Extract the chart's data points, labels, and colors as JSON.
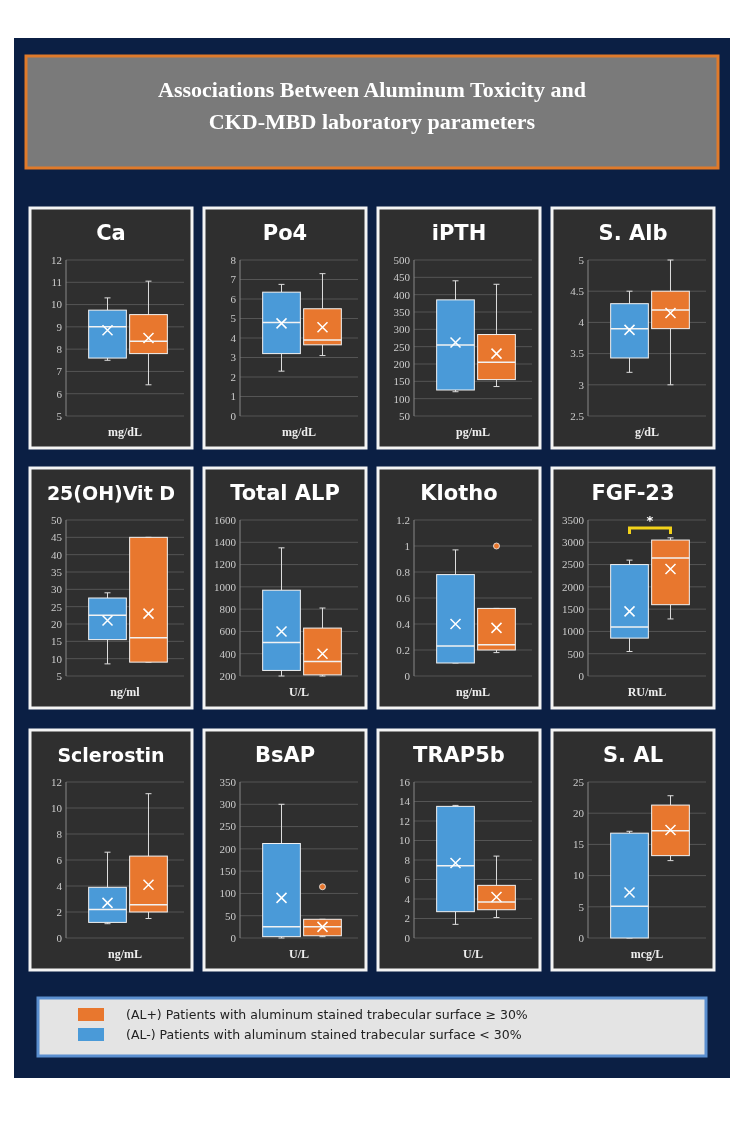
{
  "chart_data": [
    {
      "type": "other",
      "title": "Associations Between Aluminum Toxicity and CKD-MBD laboratory parameters"
    },
    {
      "type": "box",
      "title": "Ca",
      "xlabel": "mg/dL",
      "categories": [
        null
      ],
      "ylim": [
        5,
        12
      ],
      "yticks": [
        5,
        6,
        7,
        8,
        9,
        10,
        11,
        12
      ],
      "grid": "y",
      "series": [
        {
          "color": "#4a9ad8",
          "boxes": [
            {
              "low": 7.5,
              "q1": 7.6,
              "median": 9,
              "q3": 9.75,
              "high": 10.3,
              "mean": 8.85
            }
          ]
        },
        {
          "color": "#e8772e",
          "boxes": [
            {
              "low": 6.4,
              "q1": 7.8,
              "median": 8.35,
              "q3": 9.55,
              "high": 11.05,
              "mean": 8.5
            }
          ]
        }
      ]
    },
    {
      "type": "box",
      "title": "Po4",
      "xlabel": "mg/dL",
      "categories": [
        null
      ],
      "ylim": [
        0,
        8
      ],
      "yticks": [
        0,
        1,
        2,
        3,
        4,
        5,
        6,
        7,
        8
      ],
      "grid": "y",
      "series": [
        {
          "color": "#4a9ad8",
          "boxes": [
            {
              "low": 2.3,
              "q1": 3.2,
              "median": 4.8,
              "q3": 6.35,
              "high": 6.75,
              "mean": 4.75
            }
          ]
        },
        {
          "color": "#e8772e",
          "boxes": [
            {
              "low": 3.1,
              "q1": 3.65,
              "median": 3.9,
              "q3": 5.5,
              "high": 7.3,
              "mean": 4.55
            }
          ]
        }
      ]
    },
    {
      "type": "box",
      "title": "iPTH",
      "xlabel": "pg/mL",
      "categories": [
        null
      ],
      "ylim": [
        50,
        500
      ],
      "yticks": [
        50,
        100,
        150,
        200,
        250,
        300,
        350,
        400,
        450,
        500
      ],
      "grid": "y",
      "series": [
        {
          "color": "#4a9ad8",
          "boxes": [
            {
              "low": 120,
              "q1": 125,
              "median": 255,
              "q3": 385,
              "high": 440,
              "mean": 262
            }
          ]
        },
        {
          "color": "#e8772e",
          "boxes": [
            {
              "low": 135,
              "q1": 155,
              "median": 205,
              "q3": 285,
              "high": 430,
              "mean": 230
            }
          ]
        }
      ]
    },
    {
      "type": "box",
      "title": "S. Alb",
      "xlabel": "g/dL",
      "categories": [
        null
      ],
      "ylim": [
        2.5,
        5
      ],
      "yticks": [
        2.5,
        3,
        3.5,
        4,
        4.5,
        5
      ],
      "grid": "y",
      "series": [
        {
          "color": "#4a9ad8",
          "boxes": [
            {
              "low": 3.2,
              "q1": 3.43,
              "median": 3.9,
              "q3": 4.3,
              "high": 4.5,
              "mean": 3.88
            }
          ]
        },
        {
          "color": "#e8772e",
          "boxes": [
            {
              "low": 3,
              "q1": 3.9,
              "median": 4.2,
              "q3": 4.5,
              "high": 5,
              "mean": 4.15
            }
          ]
        }
      ]
    },
    {
      "type": "box",
      "title": "25(OH)Vit D",
      "xlabel": "ng/ml",
      "categories": [
        null
      ],
      "ylim": [
        5,
        50
      ],
      "yticks": [
        5,
        10,
        15,
        20,
        25,
        30,
        35,
        40,
        45,
        50
      ],
      "grid": "y",
      "series": [
        {
          "color": "#4a9ad8",
          "boxes": [
            {
              "low": 8.5,
              "q1": 15.5,
              "median": 22.5,
              "q3": 27.5,
              "high": 29,
              "mean": 21
            }
          ]
        },
        {
          "color": "#e8772e",
          "boxes": [
            {
              "low": 9,
              "q1": 9,
              "median": 16,
              "q3": 45,
              "high": 45,
              "mean": 23
            }
          ]
        }
      ]
    },
    {
      "type": "box",
      "title": "Total ALP",
      "xlabel": "U/L",
      "categories": [
        null
      ],
      "ylim": [
        200,
        1600
      ],
      "yticks": [
        200,
        400,
        600,
        800,
        1000,
        1200,
        1400,
        1600
      ],
      "grid": "y",
      "series": [
        {
          "color": "#4a9ad8",
          "boxes": [
            {
              "low": 200,
              "q1": 250,
              "median": 500,
              "q3": 970,
              "high": 1350,
              "mean": 600
            }
          ]
        },
        {
          "color": "#e8772e",
          "boxes": [
            {
              "low": 200,
              "q1": 210,
              "median": 330,
              "q3": 630,
              "high": 810,
              "mean": 400
            }
          ]
        }
      ]
    },
    {
      "type": "box",
      "title": "Klotho",
      "xlabel": "ng/mL",
      "categories": [
        null
      ],
      "ylim": [
        0,
        1.2
      ],
      "yticks": [
        0,
        0.2,
        0.4,
        0.6,
        0.8,
        1,
        1.2
      ],
      "grid": "y",
      "series": [
        {
          "color": "#4a9ad8",
          "boxes": [
            {
              "low": 0.1,
              "q1": 0.1,
              "median": 0.23,
              "q3": 0.78,
              "high": 0.97,
              "mean": 0.4
            }
          ]
        },
        {
          "color": "#e8772e",
          "boxes": [
            {
              "low": 0.18,
              "q1": 0.2,
              "median": 0.24,
              "q3": 0.52,
              "high": 0.52,
              "mean": 0.37,
              "outliers": [
                1
              ]
            }
          ]
        }
      ]
    },
    {
      "type": "box",
      "title": "FGF-23",
      "xlabel": "RU/mL",
      "categories": [
        null
      ],
      "ylim": [
        0,
        3500
      ],
      "yticks": [
        0,
        500,
        1000,
        1500,
        2000,
        2500,
        3000,
        3500
      ],
      "grid": "y",
      "annotations": [
        "*"
      ],
      "series": [
        {
          "color": "#4a9ad8",
          "boxes": [
            {
              "low": 550,
              "q1": 850,
              "median": 1100,
              "q3": 2500,
              "high": 2600,
              "mean": 1450
            }
          ]
        },
        {
          "color": "#e8772e",
          "boxes": [
            {
              "low": 1280,
              "q1": 1600,
              "median": 2650,
              "q3": 3050,
              "high": 3100,
              "mean": 2400
            }
          ]
        }
      ]
    },
    {
      "type": "box",
      "title": "Sclerostin",
      "xlabel": "ng/mL",
      "categories": [
        null
      ],
      "ylim": [
        0,
        12
      ],
      "yticks": [
        0,
        2,
        4,
        6,
        8,
        10,
        12
      ],
      "grid": "y",
      "series": [
        {
          "color": "#4a9ad8",
          "boxes": [
            {
              "low": 1.1,
              "q1": 1.2,
              "median": 2.2,
              "q3": 3.9,
              "high": 6.6,
              "mean": 2.7
            }
          ]
        },
        {
          "color": "#e8772e",
          "boxes": [
            {
              "low": 1.5,
              "q1": 2,
              "median": 2.55,
              "q3": 6.3,
              "high": 11.1,
              "mean": 4.1
            }
          ]
        }
      ]
    },
    {
      "type": "box",
      "title": "BsAP",
      "xlabel": "U/L",
      "categories": [
        null
      ],
      "ylim": [
        0,
        350
      ],
      "yticks": [
        0,
        50,
        100,
        150,
        200,
        250,
        300,
        350
      ],
      "grid": "y",
      "series": [
        {
          "color": "#4a9ad8",
          "boxes": [
            {
              "low": 0,
              "q1": 3,
              "median": 25,
              "q3": 212,
              "high": 300,
              "mean": 90
            }
          ]
        },
        {
          "color": "#e8772e",
          "boxes": [
            {
              "low": 3,
              "q1": 5,
              "median": 25,
              "q3": 42,
              "high": 42,
              "mean": 25,
              "outliers": [
                115
              ]
            }
          ]
        }
      ]
    },
    {
      "type": "box",
      "title": "TRAP5b",
      "xlabel": "U/L",
      "categories": [
        null
      ],
      "ylim": [
        0,
        16
      ],
      "yticks": [
        0,
        2,
        4,
        6,
        8,
        10,
        12,
        14,
        16
      ],
      "grid": "y",
      "series": [
        {
          "color": "#4a9ad8",
          "boxes": [
            {
              "low": 1.4,
              "q1": 2.7,
              "median": 7.4,
              "q3": 13.5,
              "high": 13.6,
              "mean": 7.7
            }
          ]
        },
        {
          "color": "#e8772e",
          "boxes": [
            {
              "low": 2.1,
              "q1": 2.9,
              "median": 3.7,
              "q3": 5.4,
              "high": 8.4,
              "mean": 4.2
            }
          ]
        }
      ]
    },
    {
      "type": "box",
      "title": "S. AL",
      "xlabel": "mcg/L",
      "categories": [
        null
      ],
      "ylim": [
        0,
        25
      ],
      "yticks": [
        0,
        5,
        10,
        15,
        20,
        25
      ],
      "grid": "y",
      "legend": "bottom",
      "series": [
        {
          "name": "(AL-) Patients with aluminum stained trabecular surface < 30%",
          "color": "#4a9ad8",
          "boxes": [
            {
              "low": 0,
              "q1": 0,
              "median": 5.1,
              "q3": 16.8,
              "high": 17.1,
              "mean": 7.3
            }
          ]
        },
        {
          "name": "(AL+) Patients with aluminum stained trabecular surface ≥ 30%",
          "color": "#e8772e",
          "boxes": [
            {
              "low": 12.4,
              "q1": 13.2,
              "median": 17.2,
              "q3": 21.3,
              "high": 22.8,
              "mean": 17.3
            }
          ]
        }
      ]
    }
  ]
}
